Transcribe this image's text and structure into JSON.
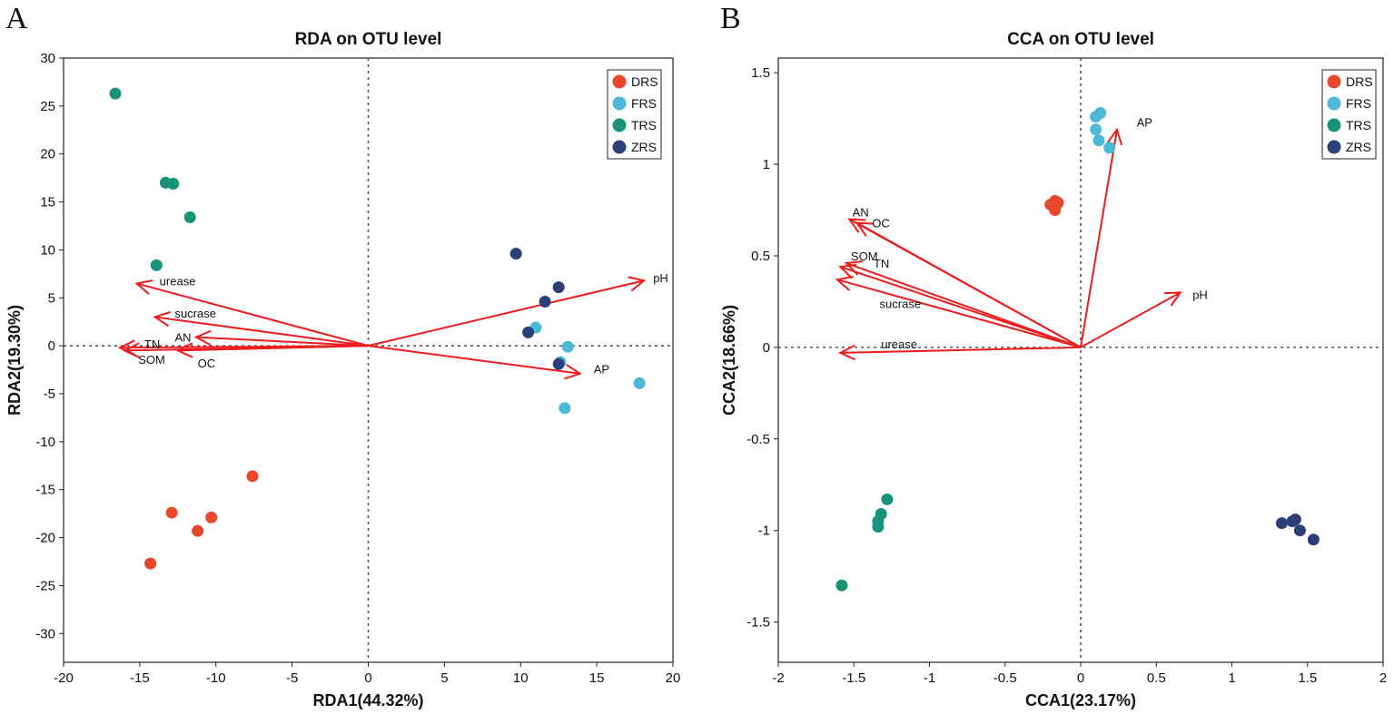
{
  "panels": [
    {
      "letter": "A"
    },
    {
      "letter": "B"
    }
  ],
  "chart_data": [
    {
      "type": "scatter",
      "title": "RDA on OTU level",
      "xlabel": "RDA1(44.32%)",
      "ylabel": "RDA2(19.30%)",
      "xlim": [
        -20,
        20
      ],
      "ylim": [
        -33,
        30
      ],
      "xticks": [
        -20,
        -15,
        -10,
        -5,
        0,
        5,
        10,
        15,
        20
      ],
      "yticks": [
        -30,
        -25,
        -20,
        -15,
        -10,
        -5,
        0,
        5,
        10,
        15,
        20,
        25,
        30
      ],
      "legend_position": "top-right",
      "series": [
        {
          "name": "DRS",
          "color": "#e8472c",
          "points": [
            [
              -7.6,
              -13.6
            ],
            [
              -12.9,
              -17.4
            ],
            [
              -10.3,
              -17.9
            ],
            [
              -11.2,
              -19.3
            ],
            [
              -14.3,
              -22.7
            ]
          ]
        },
        {
          "name": "FRS",
          "color": "#4ab8d6",
          "points": [
            [
              11.0,
              1.9
            ],
            [
              13.1,
              -0.1
            ],
            [
              12.6,
              -1.7
            ],
            [
              17.8,
              -3.9
            ],
            [
              12.9,
              -6.5
            ]
          ]
        },
        {
          "name": "TRS",
          "color": "#16937a",
          "points": [
            [
              -16.6,
              26.3
            ],
            [
              -13.3,
              17.0
            ],
            [
              -12.8,
              16.9
            ],
            [
              -11.7,
              13.4
            ],
            [
              -13.9,
              8.4
            ]
          ]
        },
        {
          "name": "ZRS",
          "color": "#2b3f78",
          "points": [
            [
              9.7,
              9.6
            ],
            [
              12.5,
              6.1
            ],
            [
              11.6,
              4.6
            ],
            [
              10.5,
              1.4
            ],
            [
              12.5,
              -1.9
            ]
          ]
        }
      ],
      "arrows": [
        {
          "label": "urease",
          "x": -15.2,
          "y": 6.5,
          "label_x": -13.7,
          "label_y": 6.8
        },
        {
          "label": "sucrase",
          "x": -14.0,
          "y": 3.0,
          "label_x": -12.7,
          "label_y": 3.4
        },
        {
          "label": "AN",
          "x": -11.3,
          "y": 0.9,
          "label_x": -12.7,
          "label_y": 0.9
        },
        {
          "label": "TN",
          "x": -16.3,
          "y": -0.2,
          "label_x": -14.7,
          "label_y": 0.2
        },
        {
          "label": "SOM",
          "x": -16.0,
          "y": -0.5,
          "label_x": -15.1,
          "label_y": -1.4
        },
        {
          "label": "OC",
          "x": -12.5,
          "y": -0.5,
          "label_x": -11.2,
          "label_y": -1.8
        },
        {
          "label": "AP",
          "x": 13.9,
          "y": -2.9,
          "label_x": 14.8,
          "label_y": -2.4
        },
        {
          "label": "pH",
          "x": 18.1,
          "y": 6.8,
          "label_x": 18.7,
          "label_y": 7.1
        }
      ]
    },
    {
      "type": "scatter",
      "title": "CCA on OTU level",
      "xlabel": "CCA1(23.17%)",
      "ylabel": "CCA2(18.66%)",
      "xlim": [
        -2,
        2
      ],
      "ylim": [
        -1.72,
        1.58
      ],
      "xticks": [
        -2,
        -1.5,
        -1,
        -0.5,
        0,
        0.5,
        1,
        1.5,
        2
      ],
      "yticks": [
        -1.5,
        -1,
        -0.5,
        0,
        0.5,
        1,
        1.5
      ],
      "legend_position": "top-right",
      "series": [
        {
          "name": "DRS",
          "color": "#e8472c",
          "points": [
            [
              -0.2,
              0.78
            ],
            [
              -0.17,
              0.8
            ],
            [
              -0.16,
              0.78
            ],
            [
              -0.17,
              0.75
            ],
            [
              -0.15,
              0.79
            ]
          ]
        },
        {
          "name": "FRS",
          "color": "#4ab8d6",
          "points": [
            [
              0.1,
              1.26
            ],
            [
              0.13,
              1.28
            ],
            [
              0.1,
              1.19
            ],
            [
              0.12,
              1.13
            ],
            [
              0.19,
              1.09
            ]
          ]
        },
        {
          "name": "TRS",
          "color": "#16937a",
          "points": [
            [
              -1.28,
              -0.83
            ],
            [
              -1.32,
              -0.91
            ],
            [
              -1.34,
              -0.95
            ],
            [
              -1.34,
              -0.98
            ],
            [
              -1.58,
              -1.3
            ]
          ]
        },
        {
          "name": "ZRS",
          "color": "#2b3f78",
          "points": [
            [
              1.33,
              -0.96
            ],
            [
              1.42,
              -0.94
            ],
            [
              1.45,
              -1.0
            ],
            [
              1.54,
              -1.05
            ],
            [
              1.4,
              -0.95
            ]
          ]
        }
      ],
      "arrows": [
        {
          "label": "AN",
          "x": -1.53,
          "y": 0.7,
          "label_x": -1.51,
          "label_y": 0.74
        },
        {
          "label": "OC",
          "x": -1.48,
          "y": 0.68,
          "label_x": -1.38,
          "label_y": 0.68
        },
        {
          "label": "SOM",
          "x": -1.59,
          "y": 0.44,
          "label_x": -1.52,
          "label_y": 0.5
        },
        {
          "label": "TN",
          "x": -1.55,
          "y": 0.46,
          "label_x": -1.37,
          "label_y": 0.46
        },
        {
          "label": "sucrase",
          "x": -1.61,
          "y": 0.37,
          "label_x": -1.33,
          "label_y": 0.24
        },
        {
          "label": "urease",
          "x": -1.59,
          "y": -0.03,
          "label_x": -1.32,
          "label_y": 0.02
        },
        {
          "label": "AP",
          "x": 0.24,
          "y": 1.19,
          "label_x": 0.37,
          "label_y": 1.23
        },
        {
          "label": "pH",
          "x": 0.66,
          "y": 0.3,
          "label_x": 0.74,
          "label_y": 0.29
        }
      ]
    }
  ]
}
